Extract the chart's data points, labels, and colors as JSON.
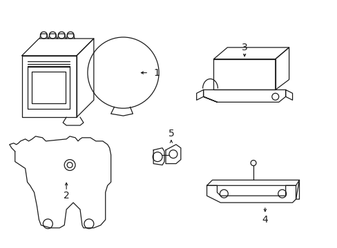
{
  "background_color": "#ffffff",
  "line_color": "#1a1a1a",
  "line_width": 0.9,
  "label_fontsize": 10
}
